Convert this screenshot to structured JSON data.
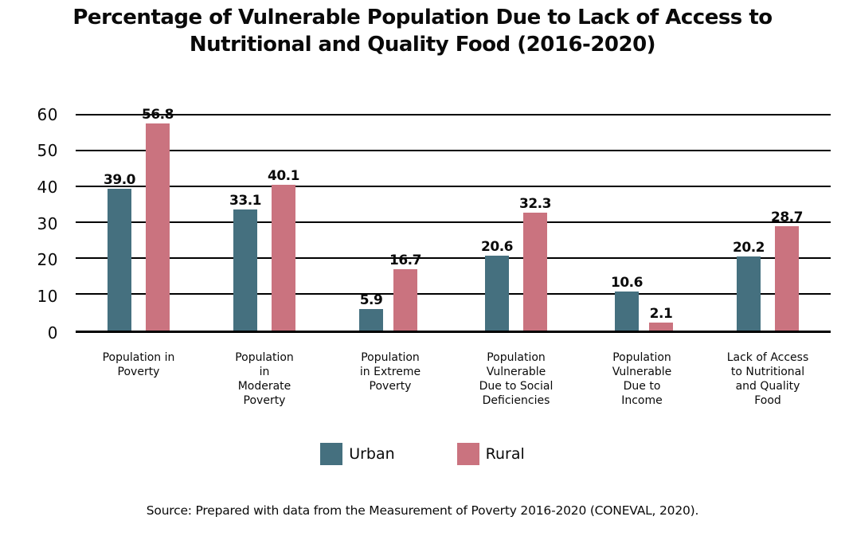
{
  "title": "Percentage of Vulnerable Population Due to Lack of Access to\nNutritional and Quality Food (2016-2020)",
  "source": "Source: Prepared with data from the Measurement of Poverty 2016-2020 (CONEVAL, 2020).",
  "colors": {
    "urban": "#45707f",
    "rural": "#ca737f",
    "grid": "#000000",
    "text": "#0a0a0a"
  },
  "chart_data": {
    "type": "bar",
    "title": "Percentage of Vulnerable Population Due to Lack of Access to Nutritional and Quality Food (2016-2020)",
    "categories": [
      "Population in\nPoverty",
      "Population\nin\nModerate\nPoverty",
      "Population\nin Extreme\nPoverty",
      "Population\nVulnerable\nDue to Social\nDeficiencies",
      "Population\nVulnerable\nDue to\nIncome",
      "Lack of Access\nto Nutritional\nand Quality\nFood"
    ],
    "series": [
      {
        "name": "Urban",
        "color": "#45707f",
        "values": [
          39.0,
          33.1,
          5.9,
          20.6,
          10.6,
          20.2
        ]
      },
      {
        "name": "Rural",
        "color": "#ca737f",
        "values": [
          56.8,
          40.1,
          16.7,
          32.3,
          2.1,
          28.7
        ]
      }
    ],
    "value_label_decimals": 1,
    "xlabel": "",
    "ylabel": "",
    "ylim": [
      0,
      60
    ],
    "yticks": [
      0,
      10,
      20,
      30,
      40,
      50,
      60
    ],
    "grid": true,
    "legend_position": "bottom",
    "source": "Source: Prepared with data from the Measurement of Poverty 2016-2020 (CONEVAL, 2020)."
  }
}
